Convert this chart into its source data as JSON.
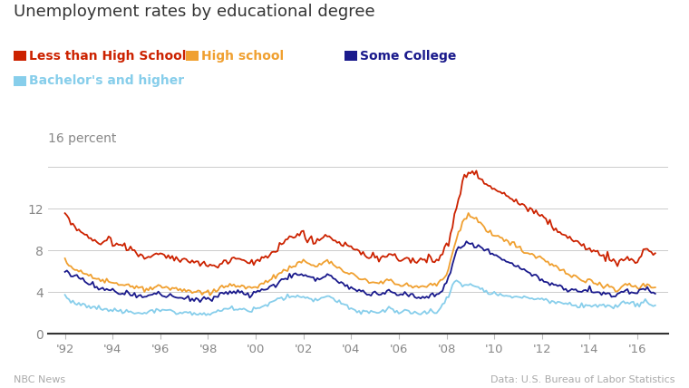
{
  "title": "Unemployment rates by educational degree",
  "legend": [
    {
      "label": "Less than High School",
      "color": "#cc2200"
    },
    {
      "label": "High school",
      "color": "#f0a030"
    },
    {
      "label": "Some College",
      "color": "#1a1a8c"
    },
    {
      "label": "Bachelor's and higher",
      "color": "#87ceeb"
    }
  ],
  "ylabel_top": "16 percent",
  "ylim": [
    0,
    17.5
  ],
  "yticks": [
    0,
    4,
    8,
    12,
    16
  ],
  "xlabel_note_left": "NBC News",
  "xlabel_note_right": "Data: U.S. Bureau of Labor Statistics",
  "background_color": "#ffffff"
}
